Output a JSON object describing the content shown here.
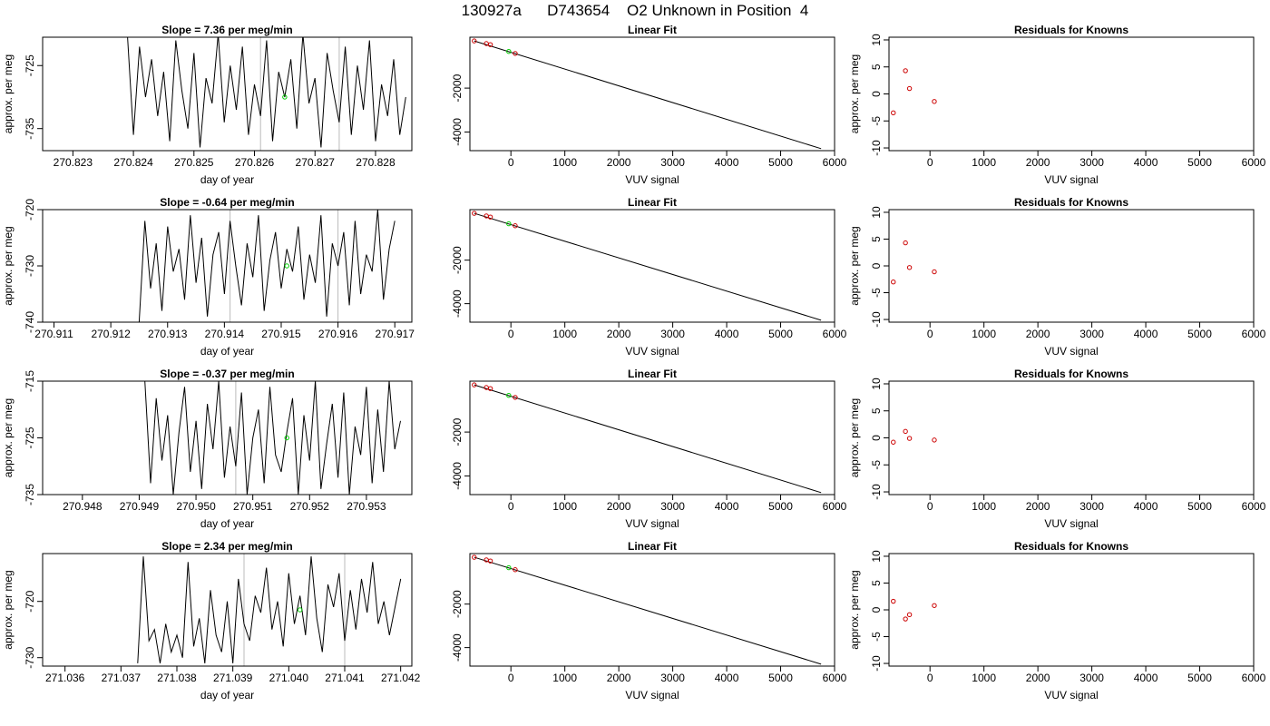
{
  "figure_title": "130927a      D743654    O2 Unknown in Position  4",
  "colors": {
    "trace": "#000000",
    "known_points": "#cc0000",
    "unknown_point": "#00cc00",
    "marker_line": "#bbbbbb"
  },
  "chart_data": [
    {
      "type": "line",
      "row": 1,
      "col": 1,
      "title": "Slope =  7.36  per meg/min",
      "xlabel": "day of year",
      "ylabel": "approx. per meg",
      "xlim": [
        270.8225,
        270.8286
      ],
      "ylim": [
        -738.5,
        -720.5
      ],
      "xticks": [
        270.823,
        270.824,
        270.825,
        270.826,
        270.827,
        270.828
      ],
      "xtick_labels": [
        "270.823",
        "270.824",
        "270.825",
        "270.826",
        "270.827",
        "270.828"
      ],
      "yticks": [
        -725,
        -735
      ],
      "ytick_labels": [
        "-725",
        "-735"
      ],
      "x": [
        270.8239,
        270.824,
        270.8241,
        270.8242,
        270.8243,
        270.8244,
        270.8245,
        270.8246,
        270.8247,
        270.8248,
        270.8249,
        270.825,
        270.8251,
        270.8252,
        270.8253,
        270.8254,
        270.8255,
        270.8256,
        270.8257,
        270.8258,
        270.8259,
        270.826,
        270.8261,
        270.8262,
        270.8263,
        270.8264,
        270.8265,
        270.8266,
        270.8267,
        270.8268,
        270.8269,
        270.827,
        270.8271,
        270.8272,
        270.8273,
        270.8274,
        270.8275,
        270.8276,
        270.8277,
        270.8278,
        270.8279,
        270.828,
        270.8281,
        270.8282,
        270.8283,
        270.8284,
        270.8285
      ],
      "y": [
        -720,
        -736,
        -722,
        -730,
        -724,
        -733,
        -726,
        -737,
        -721,
        -729,
        -735,
        -723,
        -738,
        -727,
        -731,
        -720,
        -734,
        -725,
        -732,
        -722,
        -736,
        -728,
        -733,
        -721,
        -737,
        -726,
        -730,
        -724,
        -735,
        -720,
        -731,
        -727,
        -738,
        -723,
        -729,
        -734,
        -722,
        -736,
        -725,
        -732,
        -721,
        -737,
        -728,
        -733,
        -724,
        -736,
        -730
      ],
      "markers": [
        {
          "x": 270.8265,
          "y": -730,
          "role": "unknown"
        }
      ],
      "vlines": [
        270.8261,
        270.8274
      ]
    },
    {
      "type": "scatter",
      "row": 1,
      "col": 2,
      "title": "Linear Fit",
      "xlabel": "VUV signal",
      "ylabel": "",
      "xlim": [
        -760,
        6000
      ],
      "ylim": [
        -4850,
        320
      ],
      "xticks": [
        0,
        1000,
        2000,
        3000,
        4000,
        5000,
        6000
      ],
      "xtick_labels": [
        "0",
        "1000",
        "2000",
        "3000",
        "4000",
        "5000",
        "6000"
      ],
      "yticks": [
        -2000,
        -4000
      ],
      "ytick_labels": [
        "-2000",
        "-4000"
      ],
      "knowns": [
        {
          "x": -680,
          "y": 150
        },
        {
          "x": -455,
          "y": 30
        },
        {
          "x": -380,
          "y": -20
        },
        {
          "x": 80,
          "y": -420
        }
      ],
      "unknown": [
        {
          "x": -40,
          "y": -330
        }
      ],
      "fit_line": [
        {
          "x": -680,
          "y": 150
        },
        {
          "x": 5750,
          "y": -4760
        }
      ]
    },
    {
      "type": "scatter",
      "row": 1,
      "col": 3,
      "title": "Residuals for Knowns",
      "xlabel": "VUV signal",
      "ylabel": "approx. per meg",
      "xlim": [
        -760,
        6000
      ],
      "ylim": [
        -10.5,
        10.5
      ],
      "xticks": [
        0,
        1000,
        2000,
        3000,
        4000,
        5000,
        6000
      ],
      "xtick_labels": [
        "0",
        "1000",
        "2000",
        "3000",
        "4000",
        "5000",
        "6000"
      ],
      "yticks": [
        10,
        5,
        0,
        -5,
        -10
      ],
      "ytick_labels": [
        "10",
        "5",
        "0",
        "-5",
        "-10"
      ],
      "knowns": [
        {
          "x": -680,
          "y": -3.5
        },
        {
          "x": -455,
          "y": 4.3
        },
        {
          "x": -380,
          "y": 1.0
        },
        {
          "x": 80,
          "y": -1.4
        }
      ]
    },
    {
      "type": "line",
      "row": 2,
      "col": 1,
      "title": "Slope =  -0.64  per meg/min",
      "xlabel": "day of year",
      "ylabel": "approx. per meg",
      "xlim": [
        270.9108,
        270.9173
      ],
      "ylim": [
        -740,
        -720
      ],
      "xticks": [
        270.911,
        270.912,
        270.913,
        270.914,
        270.915,
        270.916,
        270.917
      ],
      "xtick_labels": [
        "270.911",
        "270.912",
        "270.913",
        "270.914",
        "270.915",
        "270.916",
        "270.917"
      ],
      "yticks": [
        -720,
        -730,
        -740
      ],
      "ytick_labels": [
        "-720",
        "-730",
        "-740"
      ],
      "x": [
        270.9125,
        270.9126,
        270.9127,
        270.9128,
        270.9129,
        270.913,
        270.9131,
        270.9132,
        270.9133,
        270.9134,
        270.9135,
        270.9136,
        270.9137,
        270.9138,
        270.9139,
        270.914,
        270.9141,
        270.9142,
        270.9143,
        270.9144,
        270.9145,
        270.9146,
        270.9147,
        270.9148,
        270.9149,
        270.915,
        270.9151,
        270.9152,
        270.9153,
        270.9154,
        270.9155,
        270.9156,
        270.9157,
        270.9158,
        270.9159,
        270.916,
        270.9161,
        270.9162,
        270.9163,
        270.9164,
        270.9165,
        270.9166,
        270.9167,
        270.9168,
        270.9169,
        270.917
      ],
      "y": [
        -740,
        -722,
        -734,
        -726,
        -738,
        -723,
        -731,
        -727,
        -736,
        -721,
        -733,
        -725,
        -739,
        -728,
        -724,
        -735,
        -722,
        -730,
        -737,
        -726,
        -732,
        -721,
        -738,
        -729,
        -724,
        -734,
        -727,
        -731,
        -723,
        -736,
        -728,
        -733,
        -721,
        -739,
        -726,
        -730,
        -724,
        -737,
        -722,
        -735,
        -728,
        -731,
        -720,
        -736,
        -727,
        -722
      ],
      "markers": [
        {
          "x": 270.9151,
          "y": -730,
          "role": "unknown"
        }
      ],
      "vlines": [
        270.9141,
        270.916
      ]
    },
    {
      "type": "scatter",
      "row": 2,
      "col": 2,
      "title": "Linear Fit",
      "xlabel": "VUV signal",
      "ylabel": "",
      "xlim": [
        -760,
        6000
      ],
      "ylim": [
        -4850,
        320
      ],
      "xticks": [
        0,
        1000,
        2000,
        3000,
        4000,
        5000,
        6000
      ],
      "xtick_labels": [
        "0",
        "1000",
        "2000",
        "3000",
        "4000",
        "5000",
        "6000"
      ],
      "yticks": [
        -2000,
        -4000
      ],
      "ytick_labels": [
        "-2000",
        "-4000"
      ],
      "knowns": [
        {
          "x": -680,
          "y": 150
        },
        {
          "x": -455,
          "y": 30
        },
        {
          "x": -380,
          "y": -20
        },
        {
          "x": 80,
          "y": -420
        }
      ],
      "unknown": [
        {
          "x": -40,
          "y": -330
        }
      ],
      "fit_line": [
        {
          "x": -680,
          "y": 150
        },
        {
          "x": 5750,
          "y": -4760
        }
      ]
    },
    {
      "type": "scatter",
      "row": 2,
      "col": 3,
      "title": "Residuals for Knowns",
      "xlabel": "VUV signal",
      "ylabel": "approx. per meg",
      "xlim": [
        -760,
        6000
      ],
      "ylim": [
        -10.5,
        10.5
      ],
      "xticks": [
        0,
        1000,
        2000,
        3000,
        4000,
        5000,
        6000
      ],
      "xtick_labels": [
        "0",
        "1000",
        "2000",
        "3000",
        "4000",
        "5000",
        "6000"
      ],
      "yticks": [
        10,
        5,
        0,
        -5,
        -10
      ],
      "ytick_labels": [
        "10",
        "5",
        "0",
        "-5",
        "-10"
      ],
      "knowns": [
        {
          "x": -680,
          "y": -3.0
        },
        {
          "x": -455,
          "y": 4.3
        },
        {
          "x": -380,
          "y": -0.3
        },
        {
          "x": 80,
          "y": -1.1
        }
      ]
    },
    {
      "type": "line",
      "row": 3,
      "col": 1,
      "title": "Slope =  -0.37  per meg/min",
      "xlabel": "day of year",
      "ylabel": "approx. per meg",
      "xlim": [
        270.9473,
        270.9538
      ],
      "ylim": [
        -735,
        -715
      ],
      "xticks": [
        270.948,
        270.949,
        270.95,
        270.951,
        270.952,
        270.953
      ],
      "xtick_labels": [
        "270.948",
        "270.949",
        "270.950",
        "270.951",
        "270.952",
        "270.953"
      ],
      "yticks": [
        -715,
        -725,
        -735
      ],
      "ytick_labels": [
        "-715",
        "-725",
        "-735"
      ],
      "x": [
        270.9491,
        270.9492,
        270.9493,
        270.9494,
        270.9495,
        270.9496,
        270.9497,
        270.9498,
        270.9499,
        270.95,
        270.9501,
        270.9502,
        270.9503,
        270.9504,
        270.9505,
        270.9506,
        270.9507,
        270.9508,
        270.9509,
        270.951,
        270.9511,
        270.9512,
        270.9513,
        270.9514,
        270.9515,
        270.9516,
        270.9517,
        270.9518,
        270.9519,
        270.952,
        270.9521,
        270.9522,
        270.9523,
        270.9524,
        270.9525,
        270.9526,
        270.9527,
        270.9528,
        270.9529,
        270.953,
        270.9531,
        270.9532,
        270.9533,
        270.9534,
        270.9535,
        270.9536
      ],
      "y": [
        -715,
        -733,
        -718,
        -729,
        -721,
        -735,
        -724,
        -716,
        -731,
        -722,
        -734,
        -719,
        -727,
        -715,
        -732,
        -723,
        -730,
        -717,
        -735,
        -725,
        -720,
        -733,
        -716,
        -728,
        -731,
        -724,
        -718,
        -735,
        -721,
        -729,
        -715,
        -734,
        -726,
        -719,
        -732,
        -717,
        -735,
        -723,
        -728,
        -716,
        -733,
        -720,
        -731,
        -715,
        -727,
        -722
      ],
      "markers": [
        {
          "x": 270.9516,
          "y": -725,
          "role": "unknown"
        }
      ],
      "vlines": [
        270.9507
      ]
    },
    {
      "type": "scatter",
      "row": 3,
      "col": 2,
      "title": "Linear Fit",
      "xlabel": "VUV signal",
      "ylabel": "",
      "xlim": [
        -760,
        6000
      ],
      "ylim": [
        -4850,
        320
      ],
      "xticks": [
        0,
        1000,
        2000,
        3000,
        4000,
        5000,
        6000
      ],
      "xtick_labels": [
        "0",
        "1000",
        "2000",
        "3000",
        "4000",
        "5000",
        "6000"
      ],
      "yticks": [
        -2000,
        -4000
      ],
      "ytick_labels": [
        "-2000",
        "-4000"
      ],
      "knowns": [
        {
          "x": -680,
          "y": 150
        },
        {
          "x": -455,
          "y": 30
        },
        {
          "x": -380,
          "y": -20
        },
        {
          "x": 80,
          "y": -420
        }
      ],
      "unknown": [
        {
          "x": -40,
          "y": -330
        }
      ],
      "fit_line": [
        {
          "x": -680,
          "y": 150
        },
        {
          "x": 5750,
          "y": -4760
        }
      ]
    },
    {
      "type": "scatter",
      "row": 3,
      "col": 3,
      "title": "Residuals for Knowns",
      "xlabel": "VUV signal",
      "ylabel": "approx. per meg",
      "xlim": [
        -760,
        6000
      ],
      "ylim": [
        -10.5,
        10.5
      ],
      "xticks": [
        0,
        1000,
        2000,
        3000,
        4000,
        5000,
        6000
      ],
      "xtick_labels": [
        "0",
        "1000",
        "2000",
        "3000",
        "4000",
        "5000",
        "6000"
      ],
      "yticks": [
        10,
        5,
        0,
        -5,
        -10
      ],
      "ytick_labels": [
        "10",
        "5",
        "0",
        "-5",
        "-10"
      ],
      "knowns": [
        {
          "x": -680,
          "y": -0.8
        },
        {
          "x": -455,
          "y": 1.2
        },
        {
          "x": -380,
          "y": -0.1
        },
        {
          "x": 80,
          "y": -0.4
        }
      ]
    },
    {
      "type": "line",
      "row": 4,
      "col": 1,
      "title": "Slope =  2.34  per meg/min",
      "xlabel": "day of year",
      "ylabel": "approx. per meg",
      "xlim": [
        271.0356,
        271.0422
      ],
      "ylim": [
        -731.5,
        -711.5
      ],
      "xticks": [
        271.036,
        271.037,
        271.038,
        271.039,
        271.04,
        271.041,
        271.042
      ],
      "xtick_labels": [
        "271.036",
        "271.037",
        "271.038",
        "271.039",
        "271.040",
        "271.041",
        "271.042"
      ],
      "yticks": [
        -720,
        -730
      ],
      "ytick_labels": [
        "-720",
        "-730"
      ],
      "x": [
        271.0373,
        271.0374,
        271.0375,
        271.0376,
        271.0377,
        271.0378,
        271.0379,
        271.038,
        271.0381,
        271.0382,
        271.0383,
        271.0384,
        271.0385,
        271.0386,
        271.0387,
        271.0388,
        271.0389,
        271.039,
        271.0391,
        271.0392,
        271.0393,
        271.0394,
        271.0395,
        271.0396,
        271.0397,
        271.0398,
        271.0399,
        271.04,
        271.0401,
        271.0402,
        271.0403,
        271.0404,
        271.0405,
        271.0406,
        271.0407,
        271.0408,
        271.0409,
        271.041,
        271.0411,
        271.0412,
        271.0413,
        271.0414,
        271.0415,
        271.0416,
        271.0417,
        271.0418,
        271.0419,
        271.042
      ],
      "y": [
        -731,
        -712,
        -727,
        -725,
        -731,
        -724,
        -729,
        -726,
        -730,
        -713,
        -728,
        -723,
        -731,
        -718,
        -726,
        -729,
        -720,
        -731,
        -716,
        -724,
        -727,
        -719,
        -722,
        -714,
        -725,
        -720,
        -728,
        -715,
        -724,
        -719,
        -726,
        -712,
        -723,
        -729,
        -717,
        -721,
        -715,
        -727,
        -718,
        -725,
        -716,
        -722,
        -713,
        -724,
        -720,
        -726,
        -721,
        -716
      ],
      "markers": [
        {
          "x": 271.0402,
          "y": -721.5,
          "role": "unknown"
        }
      ],
      "vlines": [
        271.0392,
        271.041
      ]
    },
    {
      "type": "scatter",
      "row": 4,
      "col": 2,
      "title": "Linear Fit",
      "xlabel": "VUV signal",
      "ylabel": "",
      "xlim": [
        -760,
        6000
      ],
      "ylim": [
        -4850,
        320
      ],
      "xticks": [
        0,
        1000,
        2000,
        3000,
        4000,
        5000,
        6000
      ],
      "xtick_labels": [
        "0",
        "1000",
        "2000",
        "3000",
        "4000",
        "5000",
        "6000"
      ],
      "yticks": [
        -2000,
        -4000
      ],
      "ytick_labels": [
        "-2000",
        "-4000"
      ],
      "knowns": [
        {
          "x": -680,
          "y": 150
        },
        {
          "x": -455,
          "y": 30
        },
        {
          "x": -380,
          "y": -20
        },
        {
          "x": 80,
          "y": -420
        }
      ],
      "unknown": [
        {
          "x": -40,
          "y": -330
        }
      ],
      "fit_line": [
        {
          "x": -680,
          "y": 150
        },
        {
          "x": 5750,
          "y": -4760
        }
      ]
    },
    {
      "type": "scatter",
      "row": 4,
      "col": 3,
      "title": "Residuals for Knowns",
      "xlabel": "VUV signal",
      "ylabel": "approx. per meg",
      "xlim": [
        -760,
        6000
      ],
      "ylim": [
        -10.5,
        10.5
      ],
      "xticks": [
        0,
        1000,
        2000,
        3000,
        4000,
        5000,
        6000
      ],
      "xtick_labels": [
        "0",
        "1000",
        "2000",
        "3000",
        "4000",
        "5000",
        "6000"
      ],
      "yticks": [
        10,
        5,
        0,
        -5,
        -10
      ],
      "ytick_labels": [
        "10",
        "5",
        "0",
        "-5",
        "-10"
      ],
      "knowns": [
        {
          "x": -680,
          "y": 1.6
        },
        {
          "x": -455,
          "y": -1.7
        },
        {
          "x": -380,
          "y": -0.9
        },
        {
          "x": 80,
          "y": 0.8
        }
      ]
    }
  ]
}
